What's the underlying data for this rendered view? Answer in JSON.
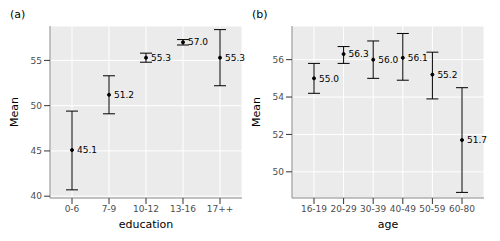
{
  "chart_data": [
    {
      "type": "scatter",
      "title": "(a)",
      "x_label": "education",
      "y_label": "Mean",
      "categories": [
        "0-6",
        "7-9",
        "10-12",
        "13-16",
        "17++"
      ],
      "values": [
        45.1,
        51.2,
        55.3,
        57.0,
        55.3
      ],
      "value_labels": [
        "45.1",
        "51.2",
        "55.3",
        "57.0",
        "55.3"
      ],
      "lower": [
        40.7,
        49.1,
        54.8,
        56.7,
        52.2
      ],
      "upper": [
        49.4,
        53.3,
        55.8,
        57.3,
        58.4
      ],
      "ylim": [
        39.8,
        58.8
      ],
      "yticks": [
        40,
        45,
        50,
        55
      ],
      "grid": true,
      "data_labels": true,
      "color": "#000000"
    },
    {
      "type": "scatter",
      "title": "(b)",
      "x_label": "age",
      "y_label": "Mean",
      "categories": [
        "16-19",
        "20-29",
        "30-39",
        "40-49",
        "50-59",
        "60-80"
      ],
      "values": [
        55.0,
        56.3,
        56.0,
        56.1,
        55.2,
        51.7
      ],
      "value_labels": [
        "55.0",
        "56.3",
        "56.0",
        "56.1",
        "55.2",
        "51.7"
      ],
      "lower": [
        54.2,
        55.8,
        55.0,
        54.9,
        53.9,
        48.9
      ],
      "upper": [
        55.8,
        56.7,
        57.0,
        57.4,
        56.4,
        54.5
      ],
      "ylim": [
        48.6,
        57.8
      ],
      "yticks": [
        50,
        52,
        54,
        56
      ],
      "grid": true,
      "data_labels": true,
      "color": "#000000"
    }
  ]
}
